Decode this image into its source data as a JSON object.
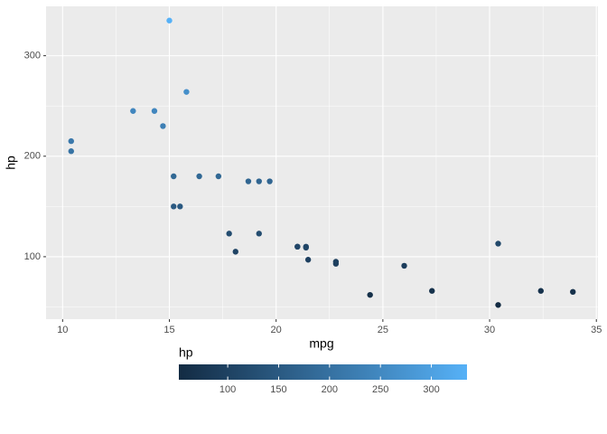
{
  "chart_data": {
    "type": "scatter",
    "x_label": "mpg",
    "y_label": "hp",
    "x": [
      21,
      21,
      22.8,
      21.4,
      18.7,
      18.1,
      14.3,
      24.4,
      22.8,
      19.2,
      17.8,
      16.4,
      17.3,
      15.2,
      10.4,
      10.4,
      14.7,
      32.4,
      30.4,
      33.9,
      21.5,
      15.5,
      15.2,
      13.3,
      19.2,
      27.3,
      26,
      30.4,
      15.8,
      19.7,
      15,
      21.4
    ],
    "y": [
      110,
      110,
      93,
      110,
      175,
      105,
      245,
      62,
      95,
      123,
      123,
      180,
      180,
      180,
      205,
      215,
      230,
      66,
      52,
      65,
      97,
      150,
      150,
      245,
      175,
      66,
      91,
      113,
      264,
      175,
      335,
      109
    ],
    "xlim": [
      9.225,
      35.075
    ],
    "xticks": [
      10,
      15,
      20,
      25,
      30,
      35
    ],
    "ylim": [
      37.85,
      349.15
    ],
    "yticks": [
      100,
      200,
      300
    ],
    "grid": true,
    "legend": {
      "title": "hp",
      "position": "bottom",
      "color_low": "#132B43",
      "color_high": "#56B1F7",
      "colorlim": [
        52,
        335
      ],
      "ticks": [
        100,
        150,
        200,
        250,
        300
      ]
    }
  }
}
